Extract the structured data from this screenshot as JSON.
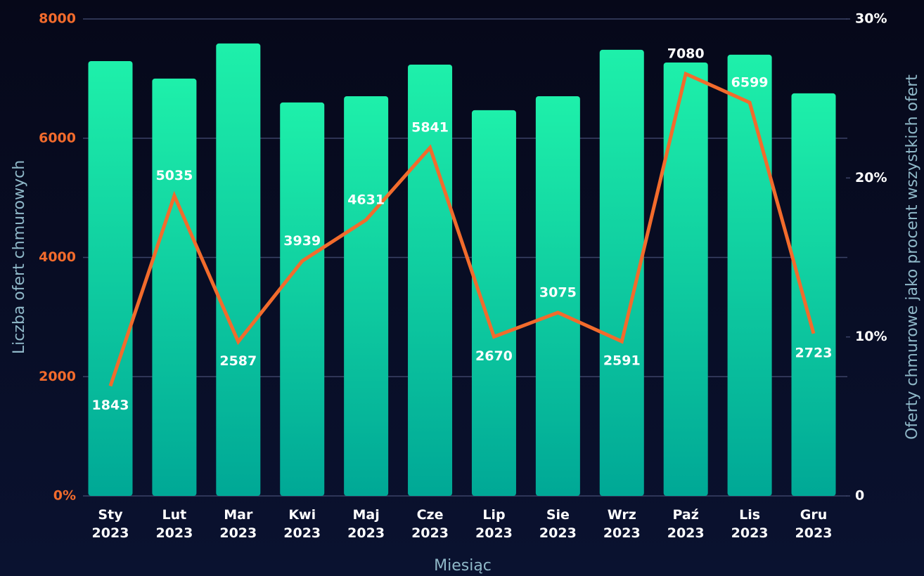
{
  "chart_data": {
    "type": "bar-line",
    "x_label": "Miesiąc",
    "y_label": "Liczba ofert chmurowych",
    "y2_label": "Oferty chmurowe jako procent wszystkich ofert",
    "categories": [
      "Sty 2023",
      "Lut 2023",
      "Mar 2023",
      "Kwi 2023",
      "Maj 2023",
      "Cze 2023",
      "Lip 2023",
      "Sie 2023",
      "Wrz 2023",
      "Paź 2023",
      "Lis 2023",
      "Gru 2023"
    ],
    "series": [
      {
        "type": "bar",
        "axis": "y2",
        "color": "#12d9a4",
        "values": [
          27.35,
          26.25,
          28.46,
          24.75,
          25.14,
          27.13,
          24.26,
          25.14,
          28.06,
          27.26,
          27.75,
          25.32
        ]
      },
      {
        "type": "line",
        "axis": "y",
        "color": "#f26b2c",
        "values": [
          1843,
          5035,
          2587,
          3939,
          4631,
          5841,
          2670,
          3075,
          2591,
          7080,
          6599,
          2723
        ]
      }
    ],
    "ylim": [
      0,
      8000
    ],
    "yticks": [
      {
        "value": 0,
        "label": "0%"
      },
      2000,
      4000,
      6000,
      8000
    ],
    "y2lim": [
      0,
      30
    ],
    "y2ticks": [
      0,
      {
        "value": 10,
        "label": "10%"
      },
      {
        "value": 20,
        "label": "20%"
      },
      {
        "value": 30,
        "label": "30%"
      }
    ],
    "grid": true
  }
}
